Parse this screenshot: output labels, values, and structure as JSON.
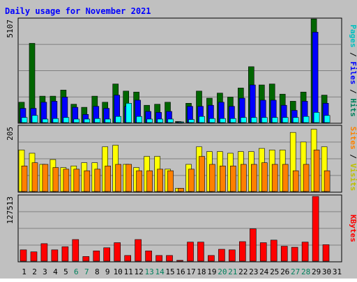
{
  "title": "Daily usage for November 2021",
  "colors": {
    "hits": "#006600",
    "files": "#0000ff",
    "pages": "#00ffff",
    "visits": "#ffff00",
    "sites": "#ff8000",
    "kbytes": "#ff0000",
    "weekend_label": "#00805c",
    "title": "#0000ff"
  },
  "chart_data": [
    {
      "type": "bar",
      "panel": "top",
      "ymax_label": "5107",
      "ylim": [
        0,
        5107
      ],
      "right_label": [
        {
          "text": "Pages",
          "color": "#00c0c0"
        },
        {
          "text": " / ",
          "color": "#000000"
        },
        {
          "text": "Files",
          "color": "#0000ff"
        },
        {
          "text": " / ",
          "color": "#000000"
        },
        {
          "text": "Hits",
          "color": "#00805c"
        }
      ],
      "categories": [
        "1",
        "2",
        "3",
        "4",
        "5",
        "6",
        "7",
        "8",
        "9",
        "10",
        "11",
        "12",
        "13",
        "14",
        "15",
        "16",
        "17",
        "18",
        "19",
        "20",
        "21",
        "22",
        "23",
        "24",
        "25",
        "26",
        "27",
        "28",
        "29",
        "30",
        "31"
      ],
      "series": [
        {
          "name": "Hits",
          "values": [
            1000,
            3900,
            1300,
            1300,
            1600,
            900,
            750,
            1300,
            1000,
            1900,
            1550,
            1500,
            850,
            900,
            1000,
            50,
            950,
            1550,
            1200,
            1450,
            1250,
            1700,
            2750,
            1850,
            1900,
            1400,
            1050,
            1500,
            5100,
            1350,
            0
          ]
        },
        {
          "name": "Files",
          "values": [
            700,
            700,
            1000,
            1050,
            1250,
            750,
            400,
            800,
            700,
            1350,
            800,
            1100,
            550,
            500,
            550,
            30,
            800,
            800,
            850,
            1000,
            800,
            1200,
            1850,
            1100,
            1100,
            850,
            600,
            1050,
            4450,
            950,
            0
          ]
        },
        {
          "name": "Pages",
          "values": [
            250,
            350,
            170,
            200,
            250,
            170,
            170,
            200,
            170,
            300,
            950,
            300,
            170,
            170,
            170,
            20,
            150,
            300,
            200,
            200,
            200,
            250,
            250,
            250,
            250,
            250,
            250,
            300,
            500,
            350,
            0
          ]
        }
      ]
    },
    {
      "type": "bar",
      "panel": "middle",
      "ymax_label": "205",
      "ylim": [
        0,
        205
      ],
      "right_label": [
        {
          "text": "Sites",
          "color": "#ff8000"
        },
        {
          "text": " / ",
          "color": "#000000"
        },
        {
          "text": "Visits",
          "color": "#c0c000"
        }
      ],
      "categories": [
        "1",
        "2",
        "3",
        "4",
        "5",
        "6",
        "7",
        "8",
        "9",
        "10",
        "11",
        "12",
        "13",
        "14",
        "15",
        "16",
        "17",
        "18",
        "19",
        "20",
        "21",
        "22",
        "23",
        "24",
        "25",
        "26",
        "27",
        "28",
        "29",
        "30",
        "31"
      ],
      "series": [
        {
          "name": "Visits",
          "values": [
            130,
            120,
            85,
            100,
            75,
            80,
            90,
            90,
            140,
            145,
            85,
            75,
            110,
            110,
            70,
            10,
            85,
            140,
            125,
            125,
            120,
            125,
            125,
            135,
            130,
            130,
            185,
            155,
            195,
            140,
            0
          ]
        },
        {
          "name": "Sites",
          "values": [
            80,
            90,
            85,
            75,
            70,
            70,
            65,
            70,
            80,
            85,
            85,
            65,
            65,
            70,
            65,
            10,
            70,
            110,
            85,
            80,
            80,
            85,
            85,
            90,
            85,
            85,
            65,
            85,
            130,
            65,
            0
          ]
        }
      ]
    },
    {
      "type": "bar",
      "panel": "bottom",
      "ymax_label": "127513",
      "ylim": [
        0,
        127513
      ],
      "right_label": [
        {
          "text": "KBytes",
          "color": "#ff0000"
        }
      ],
      "categories": [
        "1",
        "2",
        "3",
        "4",
        "5",
        "6",
        "7",
        "8",
        "9",
        "10",
        "11",
        "12",
        "13",
        "14",
        "15",
        "16",
        "17",
        "18",
        "19",
        "20",
        "21",
        "22",
        "23",
        "24",
        "25",
        "26",
        "27",
        "28",
        "29",
        "30",
        "31"
      ],
      "series": [
        {
          "name": "KBytes",
          "values": [
            22000,
            18000,
            34000,
            22000,
            28000,
            42000,
            9000,
            20000,
            26000,
            36000,
            11000,
            42000,
            20000,
            11000,
            11000,
            1500,
            37000,
            37000,
            11000,
            23000,
            22000,
            38000,
            63000,
            36000,
            41000,
            29000,
            27000,
            37000,
            126000,
            32000,
            0
          ]
        }
      ]
    }
  ]
}
